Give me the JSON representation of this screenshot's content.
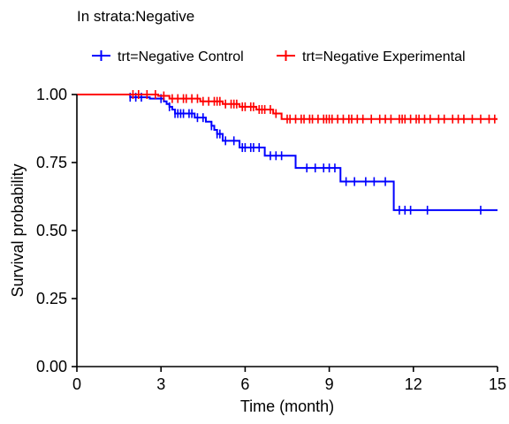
{
  "chart_data": {
    "type": "line",
    "title": "In strata:Negative",
    "xlabel": "Time (month)",
    "ylabel": "Survival probability",
    "xlim": [
      0,
      15
    ],
    "ylim": [
      0,
      1
    ],
    "x_ticks": [
      0,
      3,
      6,
      9,
      12,
      15
    ],
    "y_ticks": [
      0.0,
      0.25,
      0.5,
      0.75,
      1.0
    ],
    "x_tick_labels": [
      "0",
      "3",
      "6",
      "9",
      "12",
      "15"
    ],
    "y_tick_labels": [
      "0.00",
      "0.25",
      "0.50",
      "0.75",
      "1.00"
    ],
    "grid": false,
    "legend_position": "top",
    "series": [
      {
        "name": "trt=Negative Control",
        "color": "#0000ff",
        "steps": [
          [
            0,
            1.0
          ],
          [
            1.9,
            0.99
          ],
          [
            2.6,
            0.985
          ],
          [
            3.1,
            0.975
          ],
          [
            3.2,
            0.965
          ],
          [
            3.3,
            0.955
          ],
          [
            3.4,
            0.945
          ],
          [
            3.5,
            0.93
          ],
          [
            4.2,
            0.915
          ],
          [
            4.6,
            0.9
          ],
          [
            4.8,
            0.885
          ],
          [
            4.9,
            0.87
          ],
          [
            5.0,
            0.855
          ],
          [
            5.2,
            0.83
          ],
          [
            5.8,
            0.805
          ],
          [
            6.7,
            0.775
          ],
          [
            7.8,
            0.73
          ],
          [
            9.4,
            0.68
          ],
          [
            11.3,
            0.575
          ],
          [
            15.0,
            0.575
          ]
        ],
        "censored": [
          1.9,
          2.1,
          2.3,
          3.0,
          3.3,
          3.5,
          3.6,
          3.7,
          3.8,
          4.0,
          4.1,
          4.3,
          4.5,
          4.8,
          5.0,
          5.1,
          5.3,
          5.6,
          5.9,
          6.0,
          6.2,
          6.3,
          6.5,
          6.9,
          7.1,
          7.3,
          8.2,
          8.5,
          8.8,
          9.0,
          9.2,
          9.6,
          9.9,
          10.3,
          10.6,
          11.0,
          11.5,
          11.7,
          11.9,
          12.5,
          14.4
        ]
      },
      {
        "name": "trt=Negative Experimental",
        "color": "#ff0000",
        "steps": [
          [
            0,
            1.0
          ],
          [
            2.9,
            0.995
          ],
          [
            3.3,
            0.985
          ],
          [
            4.4,
            0.975
          ],
          [
            5.2,
            0.965
          ],
          [
            5.8,
            0.955
          ],
          [
            6.4,
            0.945
          ],
          [
            7.0,
            0.93
          ],
          [
            7.3,
            0.91
          ],
          [
            15.0,
            0.91
          ]
        ],
        "censored": [
          2.0,
          2.2,
          2.5,
          2.8,
          3.1,
          3.4,
          3.6,
          3.8,
          3.9,
          4.1,
          4.3,
          4.5,
          4.7,
          4.9,
          5.0,
          5.1,
          5.3,
          5.5,
          5.6,
          5.7,
          5.9,
          6.0,
          6.2,
          6.3,
          6.5,
          6.6,
          6.7,
          6.9,
          7.1,
          7.5,
          7.6,
          7.8,
          8.0,
          8.1,
          8.3,
          8.4,
          8.6,
          8.8,
          8.9,
          9.0,
          9.1,
          9.3,
          9.5,
          9.7,
          9.8,
          10.0,
          10.2,
          10.5,
          10.8,
          11.0,
          11.2,
          11.5,
          11.6,
          11.7,
          11.9,
          12.1,
          12.2,
          12.4,
          12.6,
          12.9,
          13.1,
          13.4,
          13.6,
          13.8,
          14.1,
          14.4,
          14.7,
          14.9
        ]
      }
    ]
  }
}
